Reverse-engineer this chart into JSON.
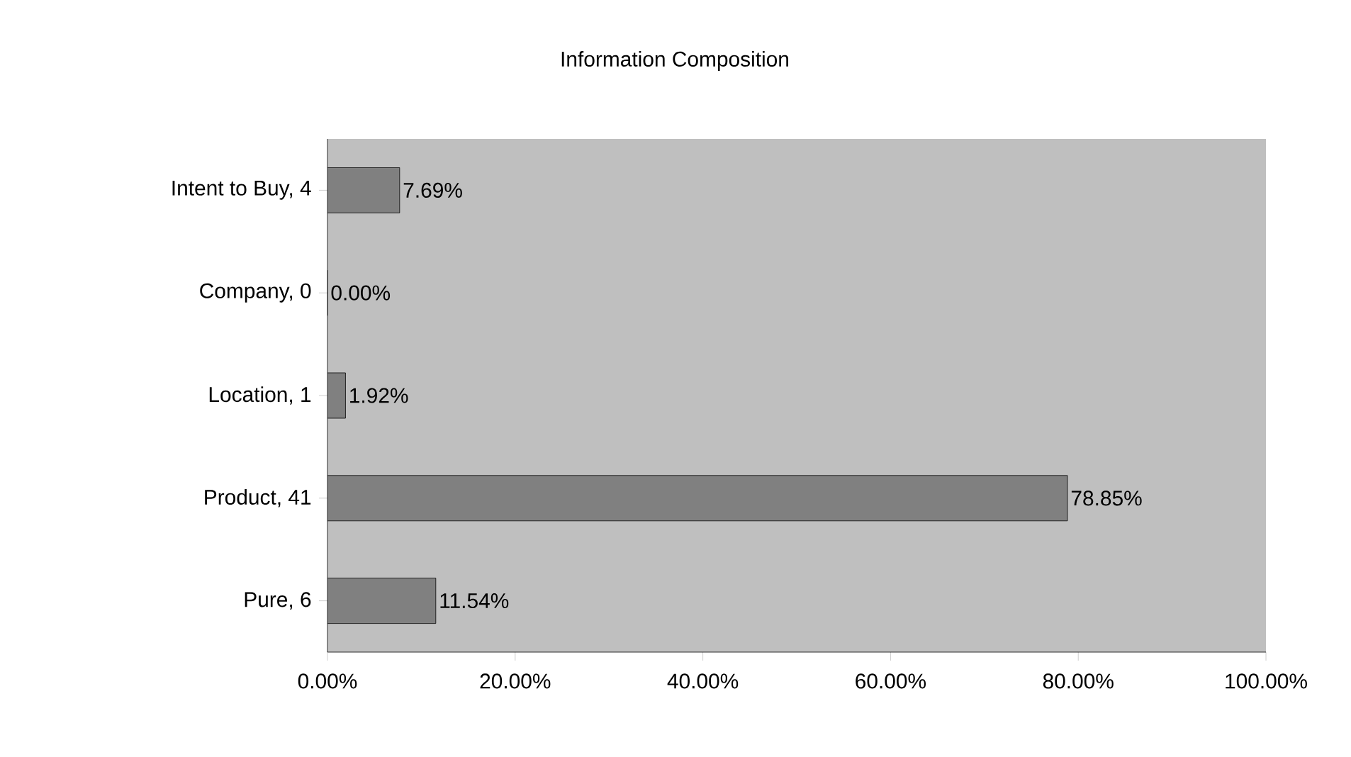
{
  "chart_data": {
    "type": "bar",
    "orientation": "horizontal",
    "title": "Information Composition",
    "categories": [
      "Intent to Buy, 4",
      "Company, 0",
      "Location, 1",
      "Product, 41",
      "Pure, 6"
    ],
    "values": [
      7.69,
      0,
      1.92,
      78.85,
      11.54
    ],
    "value_labels": [
      "7.69%",
      "0.00%",
      "1.92%",
      "78.85%",
      "11.54%"
    ],
    "color": "#808080",
    "xlim": [
      0,
      100
    ],
    "xticks": [
      {
        "value": 0,
        "label": "0.00%"
      },
      {
        "value": 20,
        "label": "20.00%"
      },
      {
        "value": 40,
        "label": "40.00%"
      },
      {
        "value": 60,
        "label": "60.00%"
      },
      {
        "value": 80,
        "label": "80.00%"
      },
      {
        "value": 100,
        "label": "100.00%"
      }
    ],
    "grid": false
  }
}
